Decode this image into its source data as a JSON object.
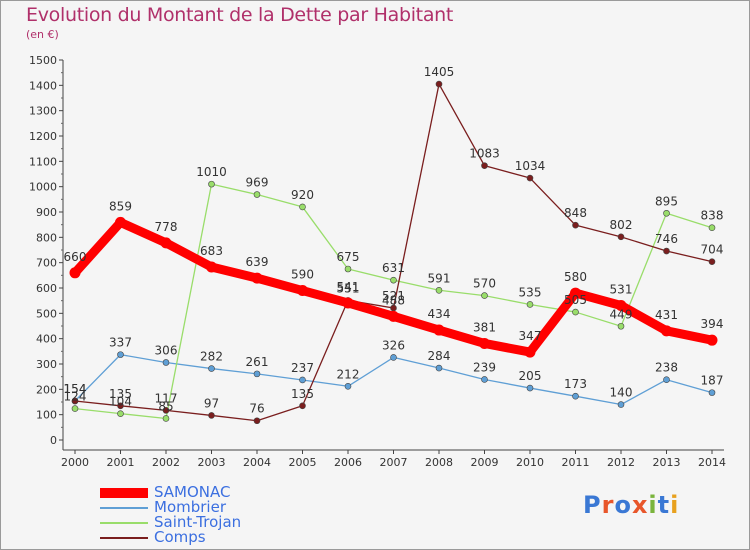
{
  "title": "Evolution du Montant de la Dette par Habitant",
  "unit": "(en €)",
  "logo": {
    "text": "Proxiti",
    "colors": [
      "#3a78d4",
      "#e8562a",
      "#3a78d4",
      "#e8562a",
      "#7ab43c",
      "#3a78d4",
      "#e8a11e"
    ]
  },
  "chart_data": {
    "type": "line",
    "title": "Evolution du Montant de la Dette par Habitant",
    "ylabel": "(en €)",
    "xlabel": "",
    "x": [
      "2000",
      "2001",
      "2002",
      "2003",
      "2004",
      "2005",
      "2006",
      "2007",
      "2008",
      "2009",
      "2010",
      "2011",
      "2012",
      "2013",
      "2014"
    ],
    "ylim": [
      0,
      1500
    ],
    "yticks": [
      0,
      100,
      200,
      300,
      400,
      500,
      600,
      700,
      800,
      900,
      1000,
      1100,
      1200,
      1300,
      1400,
      1500
    ],
    "grid": false,
    "legend_position": "bottom-left",
    "series": [
      {
        "name": "SAMONAC",
        "color": "#ff0000",
        "emphasis": true,
        "values": [
          660,
          859,
          778,
          683,
          639,
          590,
          541,
          488,
          434,
          381,
          347,
          580,
          531,
          431,
          394
        ],
        "labels": [
          "660",
          "859",
          "778",
          "683",
          "639",
          "590",
          "541",
          "488",
          "434",
          "381",
          "347",
          "580",
          "531",
          "431",
          "394"
        ]
      },
      {
        "name": "Mombrier",
        "color": "#5f9fd5",
        "values": [
          154,
          337,
          306,
          282,
          261,
          237,
          212,
          326,
          284,
          239,
          205,
          173,
          140,
          238,
          187
        ],
        "labels": [
          "154",
          "337",
          "306",
          "282",
          "261",
          "237",
          "212",
          "326",
          "284",
          "239",
          "205",
          "173",
          "140",
          "238",
          "187"
        ]
      },
      {
        "name": "Saint-Trojan",
        "color": "#99dd6a",
        "values": [
          124,
          104,
          85,
          1010,
          969,
          920,
          675,
          631,
          591,
          570,
          535,
          505,
          449,
          895,
          838
        ],
        "labels": [
          "124",
          "104",
          "85",
          "1010",
          "969",
          "920",
          "675",
          "631",
          "591",
          "570",
          "535",
          "505",
          "449",
          "895",
          "838"
        ]
      },
      {
        "name": "Comps",
        "color": "#7a1e1e",
        "values": [
          154,
          135,
          117,
          97,
          76,
          135,
          551,
          521,
          1405,
          1083,
          1034,
          848,
          802,
          746,
          704
        ],
        "labels": [
          "154",
          "135",
          "117",
          "97",
          "76",
          "135",
          "551",
          "521",
          "1405",
          "1083",
          "1034",
          "848",
          "802",
          "746",
          "704"
        ]
      }
    ]
  }
}
